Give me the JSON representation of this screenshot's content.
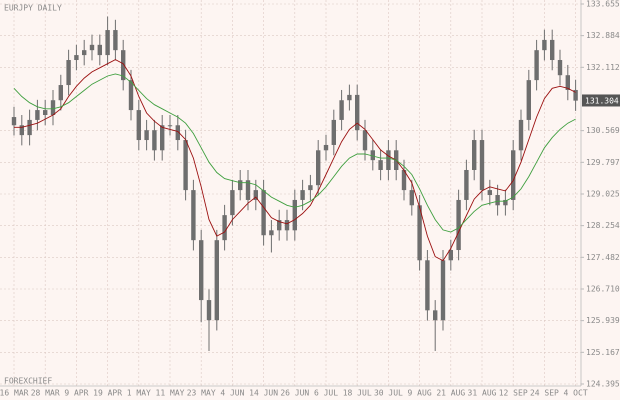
{
  "chart_data": {
    "type": "candlestick",
    "title": "EURJPY DAILY",
    "watermark": "FOREXCHIEF",
    "last_price": 131.304,
    "candle_color": "#6e6e6e",
    "grid": true,
    "categories": [
      "16 MAR",
      null,
      null,
      null,
      "28 MAR",
      null,
      null,
      null,
      "9 APR",
      null,
      null,
      null,
      "19 APR",
      null,
      null,
      null,
      "1 MAY",
      null,
      null,
      null,
      "11 MAY",
      null,
      null,
      null,
      "23 MAY",
      null,
      null,
      null,
      "4 JUN",
      null,
      null,
      null,
      "14 JUN",
      null,
      null,
      null,
      "26 JUN",
      null,
      null,
      null,
      "6 JUL",
      null,
      null,
      null,
      "18 JUL",
      null,
      null,
      null,
      "30 JUL",
      null,
      null,
      null,
      "9 AUG",
      null,
      null,
      null,
      "21 AUG",
      null,
      null,
      null,
      "31 AUG",
      null,
      null,
      null,
      "12 SEP",
      null,
      null,
      null,
      "24 SEP",
      null,
      null,
      null,
      "4 OCT"
    ],
    "candles": [
      [
        130.9,
        131.15,
        130.45,
        130.7
      ],
      [
        130.7,
        130.95,
        130.21,
        130.46
      ],
      [
        130.46,
        131.08,
        130.21,
        130.83
      ],
      [
        130.83,
        131.32,
        130.58,
        131.07
      ],
      [
        131.07,
        131.32,
        130.7,
        130.95
      ],
      [
        130.95,
        131.56,
        130.7,
        131.31
      ],
      [
        131.31,
        131.93,
        131.06,
        131.68
      ],
      [
        131.68,
        132.54,
        131.43,
        132.29
      ],
      [
        132.29,
        132.66,
        132.04,
        132.41
      ],
      [
        132.41,
        132.78,
        132.16,
        132.53
      ],
      [
        132.53,
        132.91,
        132.28,
        132.66
      ],
      [
        132.66,
        132.91,
        132.16,
        132.41
      ],
      [
        132.41,
        133.35,
        132.16,
        133.02
      ],
      [
        133.02,
        133.27,
        132.28,
        132.53
      ],
      [
        132.53,
        132.78,
        131.55,
        131.8
      ],
      [
        131.8,
        132.05,
        130.82,
        131.07
      ],
      [
        131.07,
        131.32,
        130.09,
        130.34
      ],
      [
        130.34,
        130.83,
        130.09,
        130.58
      ],
      [
        130.58,
        130.83,
        129.84,
        130.09
      ],
      [
        130.09,
        130.95,
        129.84,
        130.7
      ],
      [
        130.7,
        130.95,
        130.45,
        130.7
      ],
      [
        130.7,
        130.95,
        130.09,
        130.34
      ],
      [
        130.34,
        130.59,
        128.87,
        129.12
      ],
      [
        129.12,
        129.37,
        127.65,
        127.9
      ],
      [
        127.9,
        128.15,
        125.9,
        126.44
      ],
      [
        126.44,
        126.7,
        125.2,
        125.95
      ],
      [
        125.95,
        128.15,
        125.7,
        127.9
      ],
      [
        127.9,
        128.76,
        127.65,
        128.51
      ],
      [
        128.51,
        129.37,
        128.26,
        129.12
      ],
      [
        129.12,
        129.61,
        128.87,
        129.36
      ],
      [
        129.36,
        129.61,
        128.63,
        128.88
      ],
      [
        128.88,
        129.37,
        128.63,
        129.12
      ],
      [
        129.12,
        129.37,
        127.77,
        128.02
      ],
      [
        128.02,
        128.39,
        127.6,
        128.14
      ],
      [
        128.14,
        128.64,
        127.89,
        128.39
      ],
      [
        128.39,
        128.64,
        127.89,
        128.14
      ],
      [
        128.14,
        129.13,
        127.89,
        128.88
      ],
      [
        128.88,
        129.37,
        128.63,
        129.12
      ],
      [
        129.12,
        129.49,
        128.87,
        129.24
      ],
      [
        129.24,
        130.34,
        128.99,
        130.09
      ],
      [
        130.09,
        130.47,
        129.84,
        130.22
      ],
      [
        130.22,
        131.08,
        129.97,
        130.83
      ],
      [
        130.83,
        131.56,
        130.58,
        131.31
      ],
      [
        131.31,
        131.69,
        131.06,
        131.44
      ],
      [
        131.44,
        131.69,
        130.33,
        130.58
      ],
      [
        130.58,
        130.83,
        129.84,
        130.09
      ],
      [
        130.09,
        130.34,
        129.6,
        129.85
      ],
      [
        129.85,
        130.1,
        129.36,
        129.61
      ],
      [
        129.61,
        130.34,
        129.36,
        130.09
      ],
      [
        130.09,
        130.34,
        129.36,
        129.61
      ],
      [
        129.61,
        129.86,
        128.87,
        129.12
      ],
      [
        129.12,
        129.37,
        128.5,
        128.75
      ],
      [
        128.75,
        129.0,
        127.16,
        127.41
      ],
      [
        127.41,
        127.66,
        125.94,
        126.19
      ],
      [
        126.19,
        126.44,
        125.2,
        125.95
      ],
      [
        125.95,
        127.66,
        125.7,
        127.41
      ],
      [
        127.41,
        127.91,
        127.16,
        127.66
      ],
      [
        127.66,
        129.13,
        127.41,
        128.88
      ],
      [
        128.88,
        129.86,
        128.63,
        129.61
      ],
      [
        129.61,
        130.59,
        129.36,
        130.34
      ],
      [
        130.34,
        130.59,
        128.87,
        129.12
      ],
      [
        129.12,
        129.37,
        128.75,
        129.0
      ],
      [
        129.0,
        129.25,
        128.5,
        128.75
      ],
      [
        128.75,
        129.13,
        128.5,
        128.88
      ],
      [
        128.88,
        130.34,
        128.63,
        130.09
      ],
      [
        130.09,
        131.08,
        129.84,
        130.83
      ],
      [
        130.83,
        132.05,
        130.58,
        131.8
      ],
      [
        131.8,
        132.78,
        131.55,
        132.53
      ],
      [
        132.53,
        133.03,
        132.28,
        132.78
      ],
      [
        132.78,
        133.03,
        132.04,
        132.29
      ],
      [
        132.29,
        132.54,
        131.67,
        131.92
      ],
      [
        131.92,
        132.17,
        131.31,
        131.56
      ],
      [
        131.56,
        131.81,
        131.05,
        131.3
      ]
    ],
    "moving_averages": [
      {
        "color": "#9b1010",
        "values": [
          130.65,
          130.65,
          130.7,
          130.75,
          130.85,
          130.95,
          131.1,
          131.4,
          131.65,
          131.85,
          132.0,
          132.1,
          132.2,
          132.3,
          132.2,
          131.9,
          131.4,
          131.0,
          130.8,
          130.65,
          130.6,
          130.55,
          130.35,
          129.9,
          129.2,
          128.4,
          128.0,
          128.1,
          128.4,
          128.6,
          128.8,
          128.95,
          128.7,
          128.45,
          128.35,
          128.3,
          128.4,
          128.55,
          128.75,
          129.1,
          129.5,
          129.9,
          130.3,
          130.6,
          130.75,
          130.6,
          130.35,
          130.1,
          129.95,
          129.85,
          129.6,
          129.3,
          128.7,
          128.0,
          127.5,
          127.4,
          127.7,
          128.1,
          128.5,
          128.9,
          129.1,
          129.2,
          129.15,
          129.1,
          129.35,
          129.8,
          130.35,
          130.9,
          131.35,
          131.6,
          131.65,
          131.6,
          131.5
        ]
      },
      {
        "color": "#3f9f3f",
        "values": [
          131.6,
          131.4,
          131.25,
          131.15,
          131.1,
          131.1,
          131.15,
          131.25,
          131.4,
          131.55,
          131.7,
          131.8,
          131.9,
          131.95,
          131.9,
          131.75,
          131.55,
          131.35,
          131.2,
          131.1,
          131.0,
          130.9,
          130.75,
          130.5,
          130.15,
          129.8,
          129.55,
          129.4,
          129.35,
          129.3,
          129.3,
          129.25,
          129.1,
          128.95,
          128.85,
          128.75,
          128.7,
          128.75,
          128.85,
          129.0,
          129.2,
          129.45,
          129.7,
          129.9,
          130.0,
          130.0,
          129.95,
          129.9,
          129.9,
          129.85,
          129.7,
          129.5,
          129.15,
          128.75,
          128.4,
          128.15,
          128.1,
          128.2,
          128.4,
          128.6,
          128.75,
          128.8,
          128.85,
          128.85,
          128.95,
          129.15,
          129.45,
          129.8,
          130.15,
          130.4,
          130.6,
          130.75,
          130.85
        ]
      }
    ],
    "ylim": [
      124.395,
      133.655
    ],
    "yticks": [
      124.395,
      125.167,
      125.939,
      {
        "value": 126.71,
        "label": "126.710"
      },
      127.482,
      128.254,
      129.025,
      129.797,
      130.569,
      132.112,
      132.884,
      133.655
    ]
  }
}
